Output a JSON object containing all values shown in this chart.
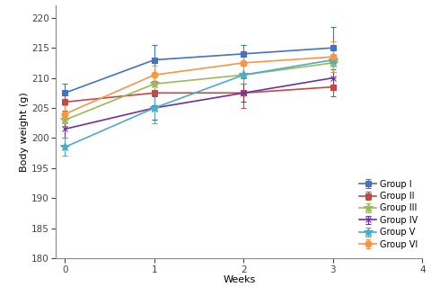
{
  "weeks": [
    0,
    1,
    2,
    3
  ],
  "xlim": [
    -0.1,
    4
  ],
  "ylim": [
    180,
    222
  ],
  "yticks": [
    180,
    185,
    190,
    195,
    200,
    205,
    210,
    215,
    220
  ],
  "xticks": [
    0,
    1,
    2,
    3,
    4
  ],
  "xlabel": "Weeks",
  "ylabel": "Body weight (g)",
  "groups": [
    {
      "label": "Group I",
      "color": "#4472C4",
      "marker": "s",
      "values": [
        207.5,
        213.0,
        214.0,
        215.0
      ],
      "errors": [
        1.5,
        2.5,
        1.5,
        3.5
      ]
    },
    {
      "label": "Group II",
      "color": "#BE4B48",
      "marker": "s",
      "values": [
        206.0,
        207.5,
        207.5,
        208.5
      ],
      "errors": [
        1.5,
        2.0,
        2.5,
        1.5
      ]
    },
    {
      "label": "Group III",
      "color": "#9BBB59",
      "marker": "*",
      "values": [
        203.0,
        209.0,
        210.5,
        212.5
      ],
      "errors": [
        1.0,
        1.5,
        1.5,
        1.5
      ]
    },
    {
      "label": "Group IV",
      "color": "#7030A0",
      "marker": "x",
      "values": [
        201.5,
        205.0,
        207.5,
        210.0
      ],
      "errors": [
        1.5,
        2.0,
        1.5,
        2.0
      ]
    },
    {
      "label": "Group V",
      "color": "#4BACC6",
      "marker": "*",
      "values": [
        198.5,
        205.0,
        210.5,
        213.0
      ],
      "errors": [
        1.5,
        2.5,
        1.5,
        2.0
      ]
    },
    {
      "label": "Group VI",
      "color": "#F79646",
      "marker": "o",
      "values": [
        204.0,
        210.5,
        212.5,
        213.5
      ],
      "errors": [
        1.5,
        1.5,
        2.0,
        2.5
      ]
    }
  ],
  "background_color": "#FFFFFF",
  "axis_fontsize": 8,
  "tick_fontsize": 7.5
}
